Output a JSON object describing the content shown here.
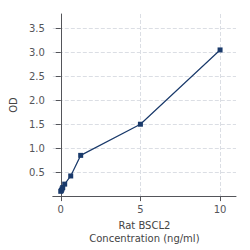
{
  "chart_data": {
    "type": "line",
    "xlabel": "Rat BSCL2\nConcentration (ng/ml)",
    "ylabel": "OD",
    "x": [
      0,
      0.041,
      0.082,
      0.123,
      0.246,
      0.625,
      1.25,
      5,
      10
    ],
    "values": [
      0.1,
      0.12,
      0.15,
      0.18,
      0.25,
      0.42,
      0.85,
      1.5,
      3.05
    ],
    "color": "#1a3a6b",
    "marker": "square",
    "xlim": [
      -0.5,
      11
    ],
    "xticks": [
      0,
      5,
      10
    ],
    "ylim": [
      0,
      3.8
    ],
    "yticks": [
      0.5,
      {
        "value": 1,
        "label": "1.0"
      },
      1.5,
      {
        "value": 2,
        "label": "2.0"
      },
      2.5,
      {
        "value": 3,
        "label": "3.0"
      },
      3.5
    ],
    "grid": true
  }
}
